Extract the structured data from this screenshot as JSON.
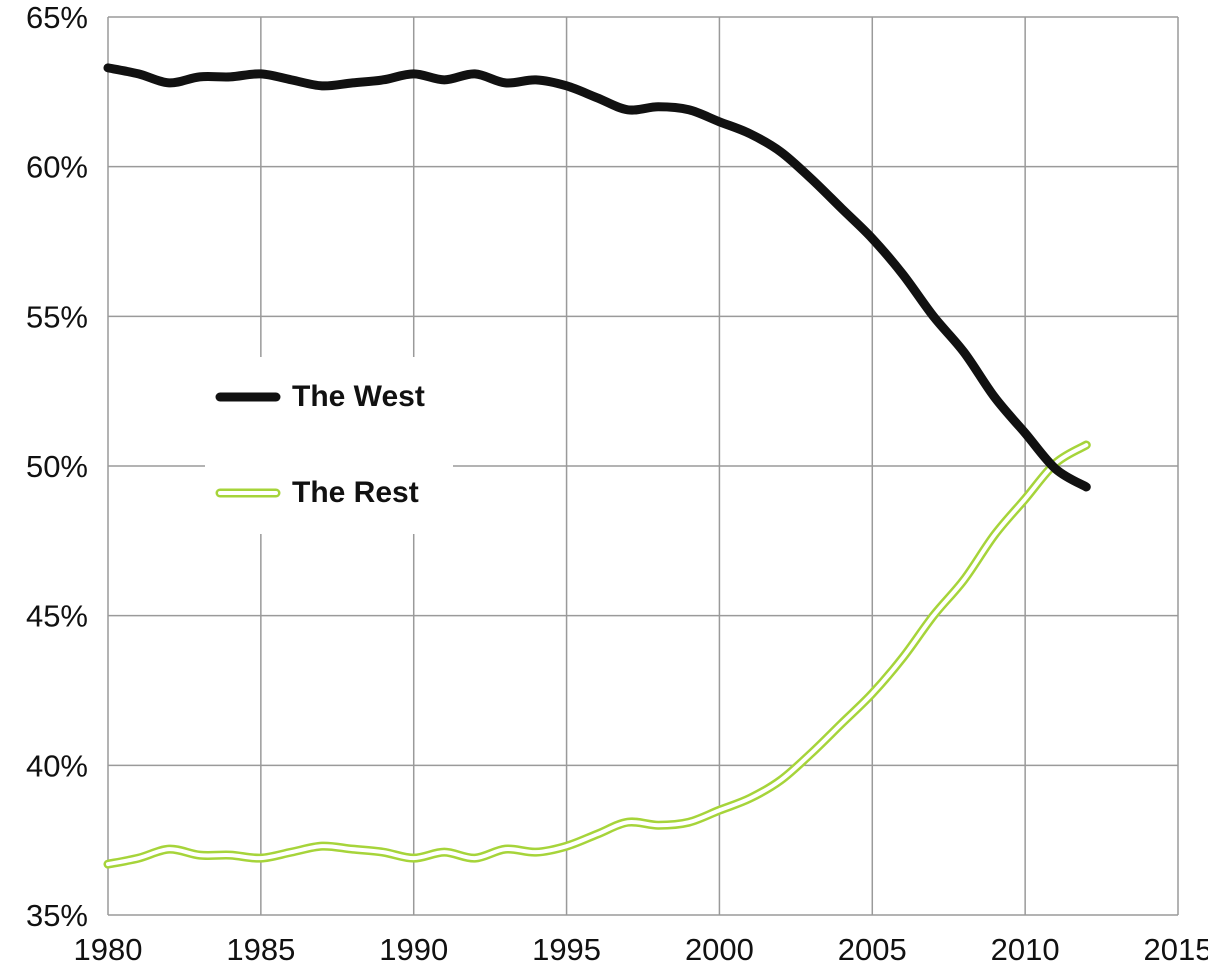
{
  "chart_data": {
    "type": "line",
    "title": "",
    "xlabel": "",
    "ylabel": "",
    "xlim": [
      1980,
      2015
    ],
    "ylim": [
      35,
      65
    ],
    "grid": true,
    "legend_placement": "middle-left",
    "x_ticks": [
      {
        "value": 1980,
        "label": "1980"
      },
      {
        "value": 1985,
        "label": "1985"
      },
      {
        "value": 1990,
        "label": "1990"
      },
      {
        "value": 1995,
        "label": "1995"
      },
      {
        "value": 2000,
        "label": "2000"
      },
      {
        "value": 2005,
        "label": "2005"
      },
      {
        "value": 2010,
        "label": "2010"
      },
      {
        "value": 2015,
        "label": "2015"
      }
    ],
    "y_ticks": [
      {
        "value": 35,
        "label": "35%"
      },
      {
        "value": 40,
        "label": "40%"
      },
      {
        "value": 45,
        "label": "45%"
      },
      {
        "value": 50,
        "label": "50%"
      },
      {
        "value": 55,
        "label": "55%"
      },
      {
        "value": 60,
        "label": "60%"
      },
      {
        "value": 65,
        "label": "65%"
      }
    ],
    "x": [
      1980,
      1981,
      1982,
      1983,
      1984,
      1985,
      1986,
      1987,
      1988,
      1989,
      1990,
      1991,
      1992,
      1993,
      1994,
      1995,
      1996,
      1997,
      1998,
      1999,
      2000,
      2001,
      2002,
      2003,
      2004,
      2005,
      2006,
      2007,
      2008,
      2009,
      2010,
      2011,
      2012
    ],
    "series": [
      {
        "name": "The West",
        "color": "#111111",
        "style": "solid-thick",
        "values": [
          63.3,
          63.1,
          62.8,
          63.0,
          63.0,
          63.1,
          62.9,
          62.7,
          62.8,
          62.9,
          63.1,
          62.9,
          63.1,
          62.8,
          62.9,
          62.7,
          62.3,
          61.9,
          62.0,
          61.9,
          61.5,
          61.1,
          60.5,
          59.6,
          58.6,
          57.6,
          56.4,
          55.0,
          53.8,
          52.3,
          51.1,
          49.9,
          49.3
        ],
        "legend_marker": "black-bar-icon"
      },
      {
        "name": "The Rest",
        "color": "#a6d43a",
        "style": "double-outline",
        "values": [
          36.7,
          36.9,
          37.2,
          37.0,
          37.0,
          36.9,
          37.1,
          37.3,
          37.2,
          37.1,
          36.9,
          37.1,
          36.9,
          37.2,
          37.1,
          37.3,
          37.7,
          38.1,
          38.0,
          38.1,
          38.5,
          38.9,
          39.5,
          40.4,
          41.4,
          42.4,
          43.6,
          45.0,
          46.2,
          47.7,
          48.9,
          50.1,
          50.7
        ],
        "legend_marker": "green-outline-bar-icon"
      }
    ]
  }
}
